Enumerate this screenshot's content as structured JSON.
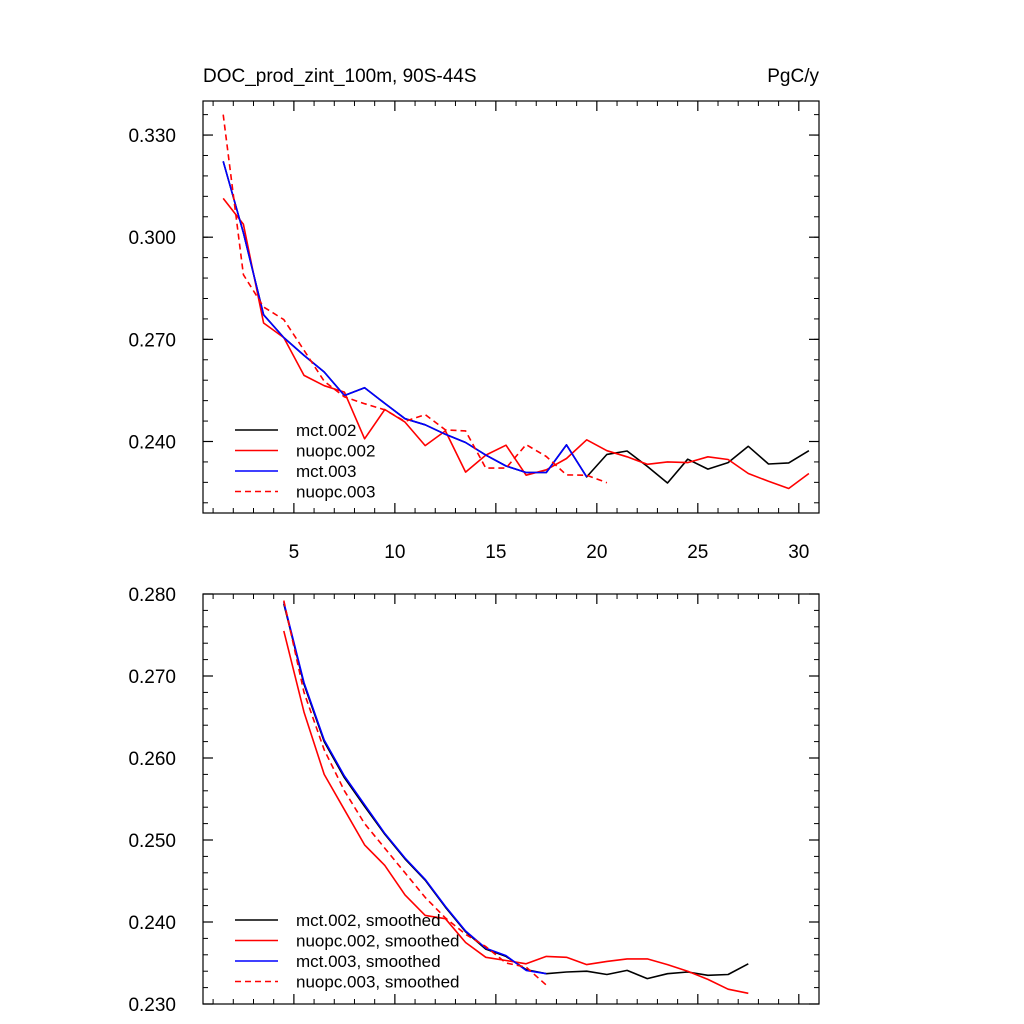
{
  "chart_data": [
    {
      "type": "line",
      "title": "DOC_prod_zint_100m, 90S-44S",
      "units": "PgC/y",
      "xlim": [
        0.5,
        31
      ],
      "ylim": [
        0.219,
        0.34
      ],
      "xticks": [
        5,
        10,
        15,
        20,
        25,
        30
      ],
      "xtick_labels": [
        "5",
        "10",
        "15",
        "20",
        "25",
        "30"
      ],
      "yticks": [
        0.24,
        0.27,
        0.3,
        0.33
      ],
      "ytick_labels": [
        "0.240",
        "0.270",
        "0.300",
        "0.330"
      ],
      "legend": "bottom-left",
      "series": [
        {
          "name": "mct.002",
          "color": "#000000",
          "dash": "solid",
          "x": [
            1.5,
            2.5,
            3.5,
            4.5,
            5.5,
            6.5,
            7.5,
            8.5,
            9.5,
            10.5,
            11.5,
            12.5,
            13.5,
            14.5,
            15.5,
            16.5,
            17.5,
            18.5,
            19.5,
            20.5,
            21.5,
            22.5,
            23.5,
            24.5,
            25.5,
            26.5,
            27.5,
            28.5,
            29.5,
            30.5
          ],
          "values": [
            0.3223,
            0.3013,
            0.2772,
            0.2705,
            0.2653,
            0.2604,
            0.2535,
            0.2558,
            0.2512,
            0.2467,
            0.2449,
            0.2421,
            0.2397,
            0.236,
            0.2328,
            0.2309,
            0.2309,
            0.239,
            0.2296,
            0.2362,
            0.2372,
            0.2327,
            0.2278,
            0.2348,
            0.2319,
            0.2338,
            0.2386,
            0.2334,
            0.2337,
            0.2373
          ]
        },
        {
          "name": "nuopc.002",
          "color": "#ff0000",
          "dash": "solid",
          "x": [
            1.5,
            2.5,
            3.5,
            4.5,
            5.5,
            6.5,
            7.5,
            8.5,
            9.5,
            10.5,
            11.5,
            12.5,
            13.5,
            14.5,
            15.5,
            16.5,
            17.5,
            18.5,
            19.5,
            20.5,
            21.5,
            22.5,
            23.5,
            24.5,
            25.5,
            26.5,
            27.5,
            28.5,
            29.5,
            30.5
          ],
          "values": [
            0.3114,
            0.3038,
            0.2748,
            0.2705,
            0.2594,
            0.2564,
            0.2545,
            0.2408,
            0.2494,
            0.2457,
            0.2388,
            0.2431,
            0.231,
            0.236,
            0.2389,
            0.2301,
            0.2317,
            0.235,
            0.2405,
            0.2373,
            0.2355,
            0.2333,
            0.234,
            0.2338,
            0.2355,
            0.2347,
            0.2306,
            0.2283,
            0.2262,
            0.2306
          ]
        },
        {
          "name": "mct.003",
          "color": "#0000ff",
          "dash": "solid",
          "x": [
            1.5,
            2.5,
            3.5,
            4.5,
            5.5,
            6.5,
            7.5,
            8.5,
            9.5,
            10.5,
            11.5,
            12.5,
            13.5,
            14.5,
            15.5,
            16.5,
            17.5,
            18.5,
            19.5
          ],
          "values": [
            0.3223,
            0.3013,
            0.2772,
            0.2705,
            0.2653,
            0.2604,
            0.2535,
            0.2558,
            0.2512,
            0.2467,
            0.2449,
            0.2421,
            0.2397,
            0.236,
            0.2328,
            0.2309,
            0.2309,
            0.239,
            0.2296
          ]
        },
        {
          "name": "nuopc.003",
          "color": "#ff0000",
          "dash": "dashed",
          "x": [
            1.5,
            2.5,
            3.5,
            4.5,
            5.5,
            6.5,
            7.5,
            8.5,
            9.5,
            10.5,
            11.5,
            12.5,
            13.5,
            14.5,
            15.5,
            16.5,
            17.5,
            18.5,
            19.5,
            20.5
          ],
          "values": [
            0.336,
            0.289,
            0.2795,
            0.2758,
            0.2668,
            0.2577,
            0.2531,
            0.2511,
            0.2493,
            0.2459,
            0.2479,
            0.2434,
            0.2431,
            0.2322,
            0.2322,
            0.2391,
            0.2356,
            0.2302,
            0.2301,
            0.2279
          ]
        }
      ]
    },
    {
      "type": "line",
      "title": "",
      "xlim": [
        0.5,
        31
      ],
      "ylim": [
        0.23,
        0.28
      ],
      "xticks": [
        5,
        10,
        15,
        20,
        25,
        30
      ],
      "xtick_labels": [],
      "yticks": [
        0.23,
        0.24,
        0.25,
        0.26,
        0.27,
        0.28
      ],
      "ytick_labels": [
        "0.230",
        "0.240",
        "0.250",
        "0.260",
        "0.270",
        "0.280"
      ],
      "legend": "bottom-left",
      "series": [
        {
          "name": "mct.002, smoothed",
          "color": "#000000",
          "dash": "solid",
          "x": [
            4.5,
            5.5,
            6.5,
            7.5,
            8.5,
            9.5,
            10.5,
            11.5,
            12.5,
            13.5,
            14.5,
            15.5,
            16.5,
            17.5,
            18.5,
            19.5,
            20.5,
            21.5,
            22.5,
            23.5,
            24.5,
            25.5,
            26.5,
            27.5
          ],
          "values": [
            0.2788,
            0.269,
            0.262,
            0.2576,
            0.2541,
            0.2507,
            0.2477,
            0.2451,
            0.2418,
            0.2388,
            0.2367,
            0.2358,
            0.2342,
            0.2337,
            0.2339,
            0.234,
            0.2336,
            0.2341,
            0.2331,
            0.2337,
            0.2339,
            0.2335,
            0.2336,
            0.2349
          ]
        },
        {
          "name": "nuopc.002, smoothed",
          "color": "#ff0000",
          "dash": "solid",
          "x": [
            4.5,
            5.5,
            6.5,
            7.5,
            8.5,
            9.5,
            10.5,
            11.5,
            12.5,
            13.5,
            14.5,
            15.5,
            16.5,
            17.5,
            18.5,
            19.5,
            20.5,
            21.5,
            22.5,
            23.5,
            24.5,
            25.5,
            26.5,
            27.5
          ],
          "values": [
            0.2755,
            0.2656,
            0.258,
            0.2537,
            0.2494,
            0.2469,
            0.2433,
            0.2408,
            0.2404,
            0.2375,
            0.2357,
            0.2353,
            0.2349,
            0.2358,
            0.2357,
            0.2348,
            0.2352,
            0.2355,
            0.2355,
            0.2348,
            0.234,
            0.233,
            0.2318,
            0.2313
          ]
        },
        {
          "name": "mct.003, smoothed",
          "color": "#0000ff",
          "dash": "solid",
          "x": [
            4.5,
            5.5,
            6.5,
            7.5,
            8.5,
            9.5,
            10.5,
            11.5,
            12.5,
            13.5,
            14.5,
            15.5,
            16.5,
            17.5
          ],
          "values": [
            0.279,
            0.2692,
            0.2622,
            0.2578,
            0.2543,
            0.2508,
            0.2478,
            0.2452,
            0.2419,
            0.2389,
            0.2368,
            0.2359,
            0.2341,
            0.2337
          ]
        },
        {
          "name": "nuopc.003, smoothed",
          "color": "#ff0000",
          "dash": "dashed",
          "x": [
            4.5,
            5.5,
            6.5,
            7.5,
            8.5,
            9.5,
            10.5,
            11.5,
            12.5,
            13.5,
            14.5,
            15.5,
            16.5,
            17.5
          ],
          "values": [
            0.2792,
            0.268,
            0.261,
            0.256,
            0.252,
            0.249,
            0.246,
            0.243,
            0.2405,
            0.2385,
            0.237,
            0.235,
            0.2345,
            0.2323
          ]
        }
      ]
    }
  ]
}
